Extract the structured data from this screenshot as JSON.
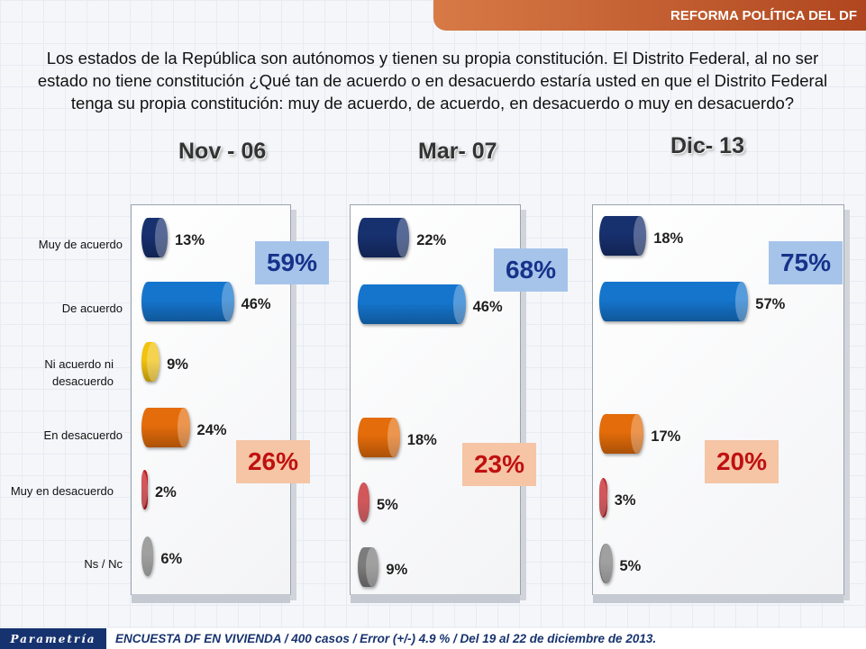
{
  "header": {
    "section": "REFORMA POLÍTICA DEL DF"
  },
  "question": "Los estados de la República son autónomos y tienen su propia constitución. El Distrito Federal, al no ser estado no tiene constitución ¿Qué tan de acuerdo o en desacuerdo estaría usted en que el Distrito Federal tenga su propia constitución: muy de acuerdo, de acuerdo, en desacuerdo o muy en desacuerdo?",
  "footer": {
    "logo": "Parametría",
    "source": "ENCUESTA DF EN VIVIENDA / 400 casos / Error (+/-) 4.9 % / Del 19 al 22 de diciembre de 2013."
  },
  "colors": [
    "#17306e",
    "#1575cd",
    "#f2c20d",
    "#e46c0a",
    "#c0171c",
    "#7c7c7c"
  ],
  "chart_data": [
    {
      "type": "bar",
      "orientation": "horizontal",
      "title": "Nov - 06",
      "categories": [
        "Muy de acuerdo",
        "De acuerdo",
        "Ni acuerdo ni desacuerdo",
        "En desacuerdo",
        "Muy en desacuerdo",
        "Ns / Nc"
      ],
      "values": [
        13,
        46,
        9,
        24,
        2,
        6
      ],
      "labels": [
        "13%",
        "46%",
        "9%",
        "24%",
        "2%",
        "6%"
      ],
      "agree_total": "59%",
      "disagree_total": "26%"
    },
    {
      "type": "bar",
      "orientation": "horizontal",
      "title": "Mar- 07",
      "categories": [
        "Muy de acuerdo",
        "De acuerdo",
        "Ni acuerdo ni desacuerdo",
        "En desacuerdo",
        "Muy en desacuerdo",
        "Ns / Nc"
      ],
      "values": [
        22,
        46,
        null,
        18,
        5,
        9
      ],
      "labels": [
        "22%",
        "46%",
        "",
        "18%",
        "5%",
        "9%"
      ],
      "agree_total": "68%",
      "disagree_total": "23%"
    },
    {
      "type": "bar",
      "orientation": "horizontal",
      "title": "Dic- 13",
      "categories": [
        "Muy de acuerdo",
        "De acuerdo",
        "Ni acuerdo ni desacuerdo",
        "En desacuerdo",
        "Muy en desacuerdo",
        "Ns / Nc"
      ],
      "values": [
        18,
        57,
        null,
        17,
        3,
        5
      ],
      "labels": [
        "18%",
        "57%",
        "",
        "17%",
        "3%",
        "5%"
      ],
      "agree_total": "75%",
      "disagree_total": "20%"
    }
  ]
}
